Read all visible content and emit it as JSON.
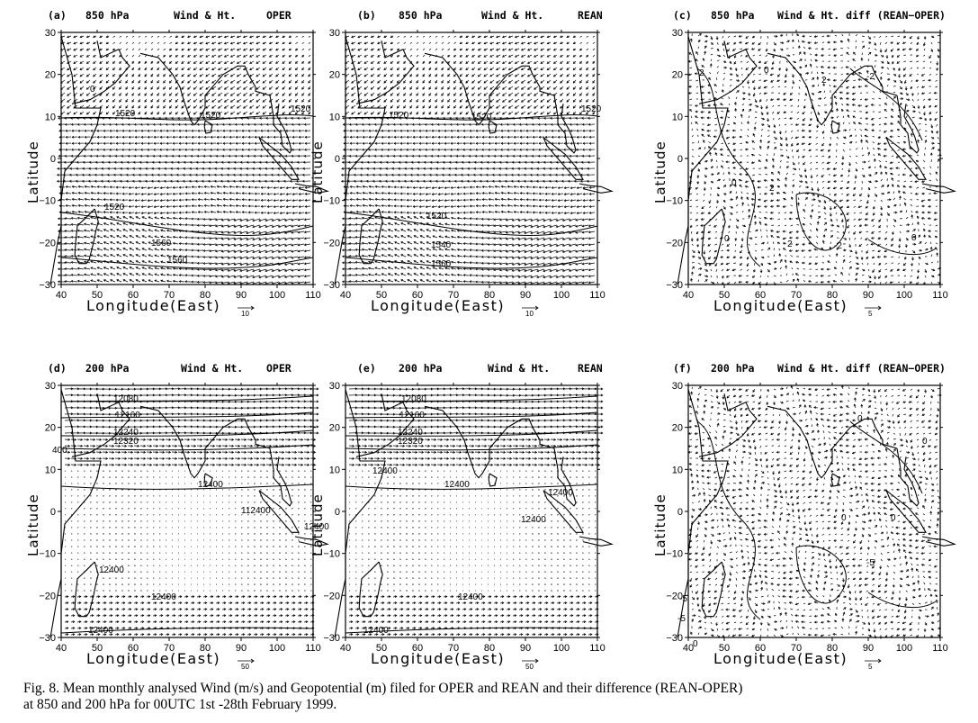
{
  "panels": [
    {
      "id": "a",
      "label": "(a)",
      "level": "850 hPa",
      "field": "Wind & Ht.",
      "run": "OPER",
      "type": "full850",
      "vector_ref": "10",
      "contours": [
        {
          "text": "1520"
        },
        {
          "text": "1520"
        },
        {
          "text": "1520"
        },
        {
          "text": "1520"
        },
        {
          "text": "1560"
        },
        {
          "text": "1560"
        },
        {
          "text": "0"
        }
      ]
    },
    {
      "id": "b",
      "label": "(b)",
      "level": "850 hPa",
      "field": "Wind & Ht.",
      "run": "REAN",
      "type": "full850",
      "vector_ref": "10",
      "contours": [
        {
          "text": "1520"
        },
        {
          "text": "1520"
        },
        {
          "text": "1520"
        },
        {
          "text": "1520"
        },
        {
          "text": "1540"
        },
        {
          "text": "1560"
        }
      ]
    },
    {
      "id": "c",
      "label": "(c)",
      "level": "850 hPa",
      "field": "Wind & Ht. diff (REAN−OPER)",
      "run": "",
      "type": "diff",
      "vector_ref": "5",
      "contours": [
        {
          "text": "2"
        },
        {
          "text": "0"
        },
        {
          "text": "2"
        },
        {
          "text": "0"
        },
        {
          "text": "2"
        },
        {
          "text": "-2"
        },
        {
          "text": "0"
        },
        {
          "text": "2"
        },
        {
          "text": "-2"
        },
        {
          "text": "0"
        }
      ]
    },
    {
      "id": "d",
      "label": "(d)",
      "level": "200 hPa",
      "field": "Wind & Ht.",
      "run": "OPER",
      "type": "full200",
      "vector_ref": "50",
      "contours": [
        {
          "text": "12080"
        },
        {
          "text": "12160"
        },
        {
          "text": "12240"
        },
        {
          "text": "12320"
        },
        {
          "text": "12400"
        },
        {
          "text": "12400"
        },
        {
          "text": "112400"
        },
        {
          "text": "12400"
        },
        {
          "text": "12400"
        },
        {
          "text": "12400"
        },
        {
          "text": "400"
        }
      ]
    },
    {
      "id": "e",
      "label": "(e)",
      "level": "200 hPa",
      "field": "Wind & Ht.",
      "run": "REAN",
      "type": "full200",
      "vector_ref": "50",
      "contours": [
        {
          "text": "12080"
        },
        {
          "text": "12160"
        },
        {
          "text": "12240"
        },
        {
          "text": "12320"
        },
        {
          "text": "12400"
        },
        {
          "text": "12400"
        },
        {
          "text": "12400"
        },
        {
          "text": "12400"
        },
        {
          "text": "12400"
        },
        {
          "text": "12400"
        }
      ]
    },
    {
      "id": "f",
      "label": "(f)",
      "level": "200 hPa",
      "field": "Wind & Ht. diff (REAN−OPER)",
      "run": "",
      "type": "diff",
      "vector_ref": "5",
      "contours": [
        {
          "text": "0"
        },
        {
          "text": "0"
        },
        {
          "text": "0"
        },
        {
          "text": "0"
        },
        {
          "text": "-5"
        },
        {
          "text": "-5"
        },
        {
          "text": "-5"
        },
        {
          "text": "0"
        }
      ]
    }
  ],
  "axes": {
    "xlabel": "Longitude(East)",
    "ylabel": "Latitude",
    "xticks": [
      "40",
      "50",
      "60",
      "70",
      "80",
      "90",
      "100",
      "110"
    ],
    "yticks": [
      "30",
      "20",
      "10",
      "0",
      "−10",
      "−20",
      "−30"
    ]
  },
  "caption": {
    "line1": "Fig. 8. Mean monthly analysed Wind (m/s) and Geopotential (m) filed for OPER and REAN and their difference (REAN-OPER)",
    "line2": "at 850 and 200 hPa for 00UTC 1st -28th February 1999."
  }
}
